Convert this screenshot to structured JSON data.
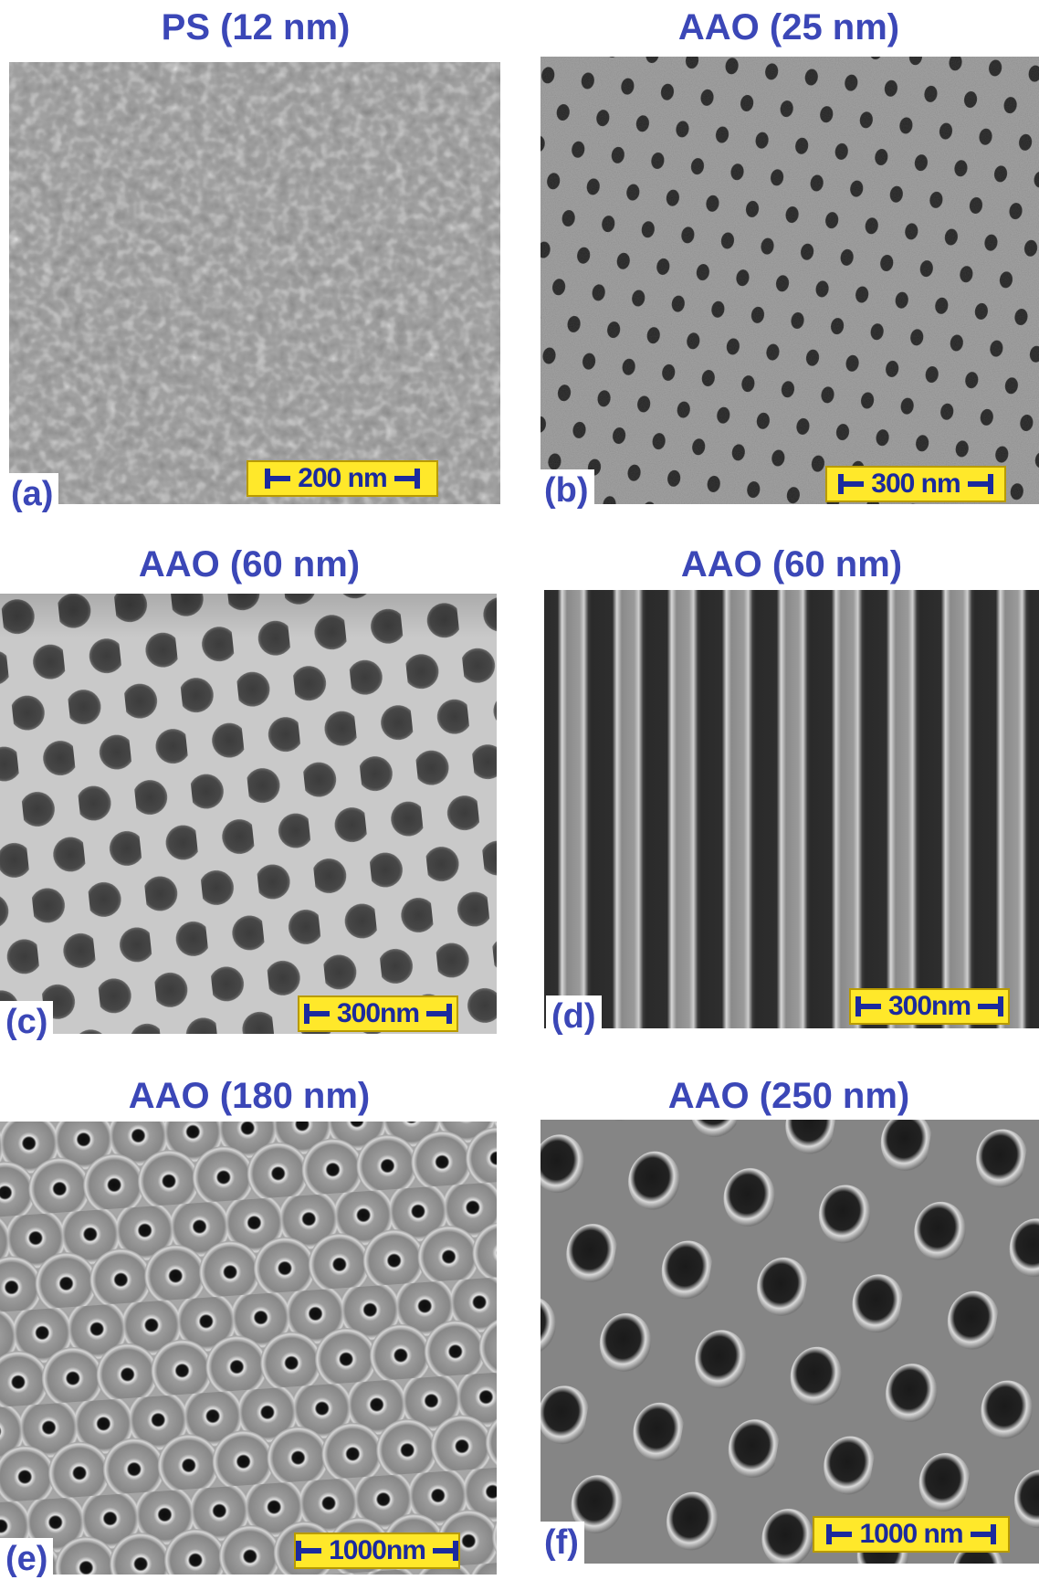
{
  "panels": [
    {
      "title": "PS (12 nm)",
      "letter": "(a)",
      "scale": "200 nm"
    },
    {
      "title": "AAO (25 nm)",
      "letter": "(b)",
      "scale": "300 nm"
    },
    {
      "title": "AAO (60 nm)",
      "letter": "(c)",
      "scale": "300nm"
    },
    {
      "title": "AAO (60 nm)",
      "letter": "(d)",
      "scale": "300nm"
    },
    {
      "title": "AAO (180 nm)",
      "letter": "(e)",
      "scale": "1000nm"
    },
    {
      "title": "AAO (250 nm)",
      "letter": "(f)",
      "scale": "1000 nm"
    }
  ],
  "colors": {
    "label": "#3b47b7",
    "scale_bg": "#ffe82a",
    "scale_fg": "#1b2a9e"
  }
}
